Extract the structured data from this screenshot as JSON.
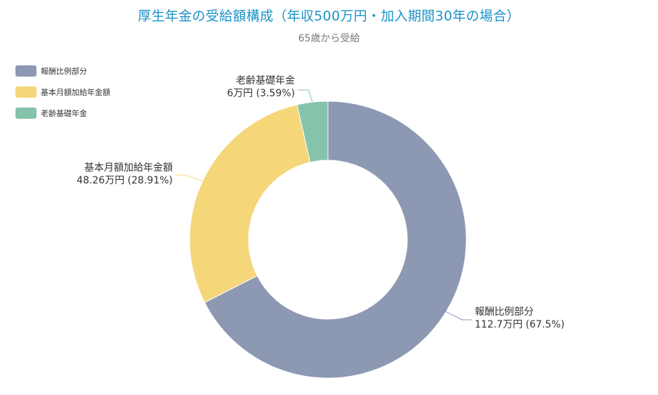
{
  "title": "厚生年金の受給額構成（年収500万円・加入期間30年の場合）",
  "subtitle": "65歳から受給",
  "chart_data": {
    "type": "pie",
    "donut": true,
    "title": "厚生年金の受給額構成（年収500万円・加入期間30年の場合）",
    "subtitle": "65歳から受給",
    "legend_position": "top-left",
    "series": [
      {
        "name": "報酬比例部分",
        "value": 112.7,
        "value_label": "112.7万円",
        "percent_label": "(67.5%)",
        "color": "#8d98b3"
      },
      {
        "name": "基本月額加給年金額",
        "value": 48.26,
        "value_label": "48.26万円",
        "percent_label": "(28.91%)",
        "color": "#f5d679"
      },
      {
        "name": "老齢基礎年金",
        "value": 6,
        "value_label": "6万円",
        "percent_label": "(3.59%)",
        "color": "#86c3ab"
      }
    ]
  }
}
